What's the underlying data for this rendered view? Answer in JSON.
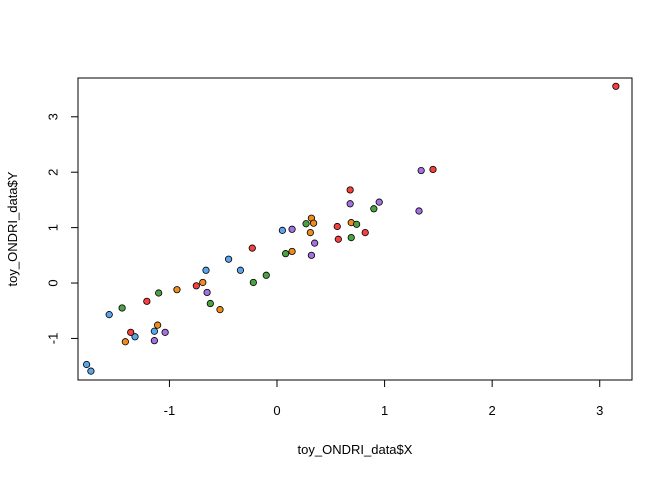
{
  "chart_data": {
    "type": "scatter",
    "title": "",
    "xlabel": "toy_ONDRI_data$X",
    "ylabel": "toy_ONDRI_data$Y",
    "xlim": [
      -1.85,
      3.3
    ],
    "ylim": [
      -1.75,
      3.7
    ],
    "xticks": [
      -1,
      0,
      1,
      2,
      3
    ],
    "yticks": [
      -1,
      0,
      1,
      2,
      3
    ],
    "xtick_labels": [
      "-1",
      "0",
      "1",
      "2",
      "3"
    ],
    "ytick_labels": [
      "-1",
      "0",
      "1",
      "2",
      "3"
    ],
    "grid": false,
    "legend": "none",
    "point_outline_color": "#000000",
    "series": [
      {
        "color": "#5aa6e8",
        "points": [
          {
            "x": -1.77,
            "y": -1.47
          },
          {
            "x": -1.73,
            "y": -1.59
          },
          {
            "x": -1.56,
            "y": -0.57
          },
          {
            "x": -1.32,
            "y": -0.97
          },
          {
            "x": -1.14,
            "y": -0.87
          },
          {
            "x": -0.66,
            "y": 0.23
          },
          {
            "x": -0.45,
            "y": 0.43
          },
          {
            "x": -0.34,
            "y": 0.23
          },
          {
            "x": 0.05,
            "y": 0.95
          }
        ]
      },
      {
        "color": "#f54040",
        "points": [
          {
            "x": -1.21,
            "y": -0.33
          },
          {
            "x": -1.36,
            "y": -0.89
          },
          {
            "x": -0.75,
            "y": -0.05
          },
          {
            "x": -0.23,
            "y": 0.63
          },
          {
            "x": 0.57,
            "y": 0.79
          },
          {
            "x": 0.56,
            "y": 1.02
          },
          {
            "x": 0.68,
            "y": 1.68
          },
          {
            "x": 0.82,
            "y": 0.91
          },
          {
            "x": 1.45,
            "y": 2.05
          },
          {
            "x": 3.15,
            "y": 3.55
          }
        ]
      },
      {
        "color": "#f08c1e",
        "points": [
          {
            "x": -1.41,
            "y": -1.06
          },
          {
            "x": -1.11,
            "y": -0.76
          },
          {
            "x": -0.93,
            "y": -0.12
          },
          {
            "x": -0.69,
            "y": 0.01
          },
          {
            "x": -0.53,
            "y": -0.48
          },
          {
            "x": 0.14,
            "y": 0.57
          },
          {
            "x": 0.31,
            "y": 0.91
          },
          {
            "x": 0.32,
            "y": 1.17
          },
          {
            "x": 0.34,
            "y": 1.08
          },
          {
            "x": 0.69,
            "y": 1.09
          }
        ]
      },
      {
        "color": "#4aa343",
        "points": [
          {
            "x": -1.44,
            "y": -0.45
          },
          {
            "x": -1.1,
            "y": -0.18
          },
          {
            "x": -0.62,
            "y": -0.37
          },
          {
            "x": -0.22,
            "y": 0.01
          },
          {
            "x": -0.1,
            "y": 0.14
          },
          {
            "x": 0.08,
            "y": 0.53
          },
          {
            "x": 0.27,
            "y": 1.07
          },
          {
            "x": 0.69,
            "y": 0.82
          },
          {
            "x": 0.74,
            "y": 1.06
          },
          {
            "x": 0.9,
            "y": 1.34
          }
        ]
      },
      {
        "color": "#a371e0",
        "points": [
          {
            "x": -1.14,
            "y": -1.04
          },
          {
            "x": -1.04,
            "y": -0.89
          },
          {
            "x": -0.65,
            "y": -0.17
          },
          {
            "x": 0.14,
            "y": 0.97
          },
          {
            "x": 0.32,
            "y": 0.5
          },
          {
            "x": 0.35,
            "y": 0.72
          },
          {
            "x": 0.68,
            "y": 1.43
          },
          {
            "x": 0.95,
            "y": 1.46
          },
          {
            "x": 1.32,
            "y": 1.3
          },
          {
            "x": 1.34,
            "y": 2.03
          }
        ]
      }
    ]
  }
}
